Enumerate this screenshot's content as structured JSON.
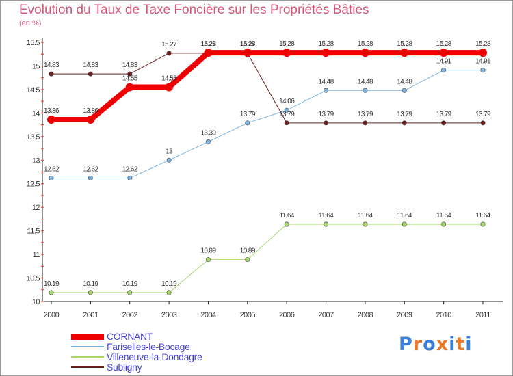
{
  "chart_data": {
    "type": "line",
    "title": "Evolution du Taux de Taxe Foncière sur les Propriétés Bâties",
    "subtitle": "(en %)",
    "categories": [
      "2000",
      "2001",
      "2002",
      "2003",
      "2004",
      "2005",
      "2006",
      "2007",
      "2008",
      "2009",
      "2010",
      "2011"
    ],
    "ylim": [
      10,
      15.5
    ],
    "yticks": [
      "10",
      "10.5",
      "11",
      "11.5",
      "12",
      "12.5",
      "13",
      "13.5",
      "14",
      "14.5",
      "15",
      "15.5"
    ],
    "series": [
      {
        "name": "Subligny",
        "color": "#6b1f1f",
        "width": 1,
        "marker": "dot",
        "values": [
          14.83,
          14.83,
          14.83,
          15.27,
          15.27,
          15.27,
          13.79,
          13.79,
          13.79,
          13.79,
          13.79,
          13.79
        ],
        "labels": [
          "14.83",
          "14.83",
          "14.83",
          "15.27",
          "15.27",
          "15.27",
          "13.79",
          "13.79",
          "13.79",
          "13.79",
          "13.79",
          "13.79"
        ]
      },
      {
        "name": "Fariselles-le-Bocage",
        "color": "#7fb3e0",
        "width": 1,
        "marker": "dot",
        "values": [
          12.62,
          12.62,
          12.62,
          13,
          13.39,
          13.79,
          14.06,
          14.48,
          14.48,
          14.48,
          14.91,
          14.91
        ],
        "labels": [
          "12.62",
          "12.62",
          "12.62",
          "13",
          "13.39",
          "13.79",
          "14.06",
          "14.48",
          "14.48",
          "14.48",
          "14.91",
          "14.91"
        ]
      },
      {
        "name": "Villeneuve-la-Dondagre",
        "color": "#a6d86a",
        "width": 1,
        "marker": "dot",
        "values": [
          10.19,
          10.19,
          10.19,
          10.19,
          10.89,
          10.89,
          11.64,
          11.64,
          11.64,
          11.64,
          11.64,
          11.64
        ],
        "labels": [
          "10.19",
          "10.19",
          "10.19",
          "10.19",
          "10.89",
          "10.89",
          "11.64",
          "11.64",
          "11.64",
          "11.64",
          "11.64",
          "11.64"
        ]
      },
      {
        "name": "CORNANT",
        "color": "#ee0000",
        "width": 8,
        "marker": "none",
        "values": [
          13.86,
          13.86,
          14.55,
          14.55,
          15.28,
          15.28,
          15.28,
          15.28,
          15.28,
          15.28,
          15.28,
          15.28
        ],
        "labels": [
          "13.86",
          "13.86",
          "14.55",
          "14.55",
          "15.28",
          "15.28",
          "15.28",
          "15.28",
          "15.28",
          "15.28",
          "15.28",
          "15.28"
        ]
      }
    ],
    "legend_order": [
      "CORNANT",
      "Fariselles-le-Bocage",
      "Villeneuve-la-Dondagre",
      "Subligny"
    ],
    "legend_position": "bottom-left",
    "grid": false
  },
  "logo": {
    "letters": [
      "P",
      "r",
      "o",
      "x",
      "i",
      "t",
      "i"
    ],
    "colors": [
      "#3c7fd6",
      "#e8792b",
      "#3c7fd6",
      "#e8792b",
      "#3c7fd6",
      "#e8792b",
      "#3c7fd6"
    ]
  }
}
